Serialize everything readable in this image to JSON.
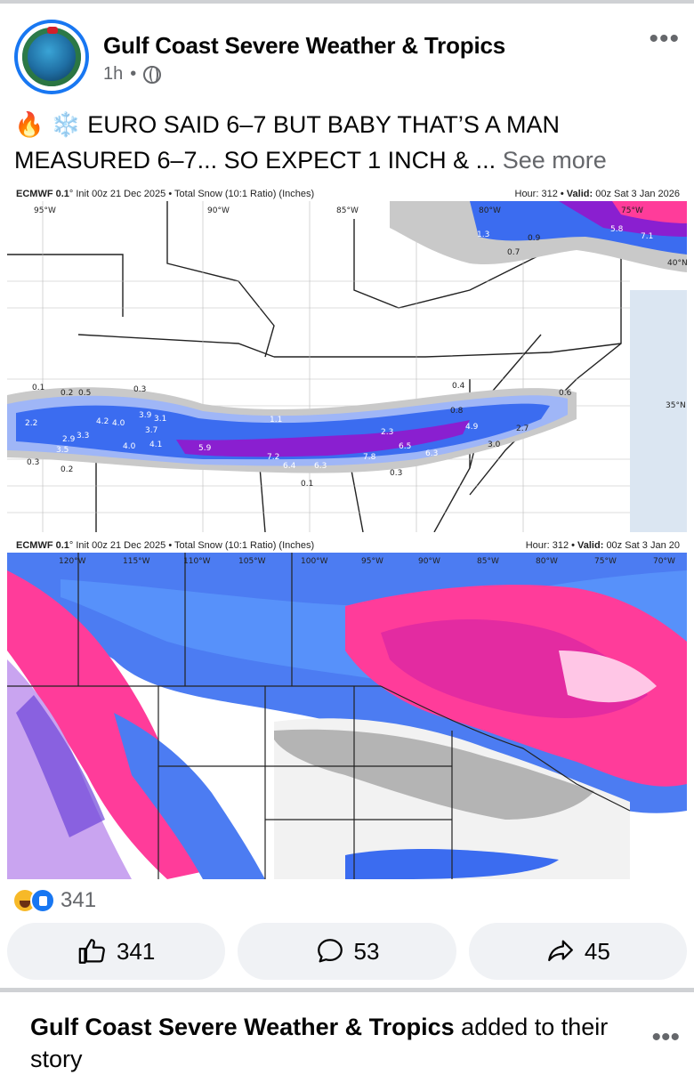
{
  "post": {
    "page_name": "Gulf Coast Severe Weather & Tropics",
    "time": "1h",
    "separator": "•",
    "emoji": "🔥 ❄️",
    "text": "EURO SAID 6–7 BUT BABY THAT’S A MAN MEASURED 6–7... SO EXPECT 1 INCH & ...",
    "see_more": "See more",
    "more_icon": "more-horizontal-icon",
    "privacy_icon": "globe-icon"
  },
  "maps": [
    {
      "model": "ECMWF 0.1",
      "init": "° Init 00z 21 Dec 2025 • Total Snow (10:1 Ratio) (Inches)",
      "hour_label": "Hour:",
      "hour": "312",
      "valid_label": "• Valid:",
      "valid": "00z Sat 3 Jan 2026",
      "longitudes": [
        "95°W",
        "90°W",
        "85°W",
        "80°W",
        "75°W"
      ],
      "latitudes": [
        "40°N",
        "35°N"
      ],
      "values": [
        "0.1",
        "0.2",
        "0.5",
        "0.3",
        "2.2",
        "4.2",
        "4.0",
        "3.9",
        "3.1",
        "3.7",
        "2.9",
        "3.3",
        "3.5",
        "4.1",
        "5.9",
        "7.2",
        "6.4",
        "6.3",
        "7.8",
        "6.5",
        "6.3",
        "4.9",
        "3.0",
        "2.7",
        "0.8",
        "1.1",
        "2.3",
        "0.4",
        "0.9",
        "1.3",
        "5.8",
        "7.1",
        "0.7",
        "0.6"
      ]
    },
    {
      "model": "ECMWF 0.1",
      "init": "° Init 00z 21 Dec 2025 • Total Snow (10:1 Ratio) (Inches)",
      "hour_label": "Hour:",
      "hour": "312",
      "valid_label": "• Valid:",
      "valid": "00z Sat 3 Jan 20",
      "longitudes": [
        "120°W",
        "115°W",
        "110°W",
        "105°W",
        "100°W",
        "95°W",
        "90°W",
        "85°W",
        "80°W",
        "75°W",
        "70°W"
      ]
    }
  ],
  "reactions": {
    "count": "341",
    "icons": [
      "haha-icon",
      "like-icon"
    ]
  },
  "actions": {
    "like": {
      "icon": "thumbs-up-icon",
      "count": "341"
    },
    "comment": {
      "icon": "comment-icon",
      "count": "53"
    },
    "share": {
      "icon": "share-icon",
      "count": "45"
    }
  },
  "next_post": {
    "page_name": "Gulf Coast Severe Weather & Tropics",
    "action_text": "added to their story"
  },
  "colors": {
    "accent": "#1877f2",
    "secondary_text": "#65676b",
    "button_bg": "#f0f2f5",
    "snow_blue": "#3b6cf0",
    "snow_purple": "#8a1fd0",
    "snow_pink": "#ff3c9a"
  }
}
